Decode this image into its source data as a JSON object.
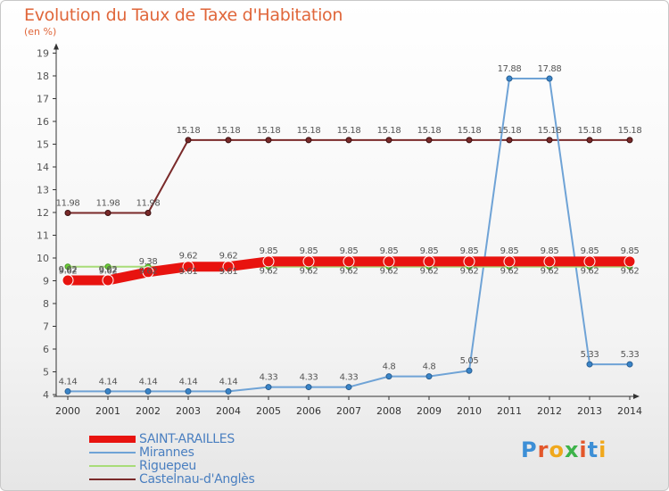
{
  "title": "Evolution du Taux de Taxe d'Habitation",
  "subtitle": "(en %)",
  "brand": "Proxiti",
  "brand_colors": [
    "#3d8fd6",
    "#e3572b",
    "#f0a81c",
    "#3db34a",
    "#e3572b",
    "#3d8fd6",
    "#f0a81c"
  ],
  "chart_data": {
    "type": "line",
    "title": "Evolution du Taux de Taxe d'Habitation",
    "ylabel": "(en %)",
    "ylim": [
      4,
      19
    ],
    "yticks": [
      4,
      5,
      6,
      7,
      8,
      9,
      10,
      11,
      12,
      13,
      14,
      15,
      16,
      17,
      18,
      19
    ],
    "grid": false,
    "legend_position": "bottom-left",
    "categories": [
      "2000",
      "2001",
      "2002",
      "2003",
      "2004",
      "2005",
      "2006",
      "2007",
      "2008",
      "2009",
      "2010",
      "2011",
      "2012",
      "2013",
      "2014"
    ],
    "series": [
      {
        "name": "Castelnau-d'Anglès",
        "color": "#7a2a2a",
        "values": [
          11.98,
          11.98,
          11.98,
          15.18,
          15.18,
          15.18,
          15.18,
          15.18,
          15.18,
          15.18,
          15.18,
          15.18,
          15.18,
          15.18,
          15.18
        ],
        "labels": [
          "11.98",
          "11.98",
          "11.98",
          "15.18",
          "15.18",
          "15.18",
          "15.18",
          "15.18",
          "15.18",
          "15.18",
          "15.18",
          "15.18",
          "15.18",
          "15.18",
          "15.18"
        ]
      },
      {
        "name": "Mirannes",
        "color": "#6fa3d6",
        "values": [
          4.14,
          4.14,
          4.14,
          4.14,
          4.14,
          4.33,
          4.33,
          4.33,
          4.8,
          4.8,
          5.05,
          17.88,
          17.88,
          5.33,
          5.33
        ],
        "labels": [
          "4.14",
          "4.14",
          "4.14",
          "4.14",
          "4.14",
          "4.33",
          "4.33",
          "4.33",
          "4.8",
          "4.8",
          "5.05",
          "17.88",
          "17.88",
          "5.33",
          "5.33"
        ]
      },
      {
        "name": "Riguepeu",
        "color": "#a8dc78",
        "values": [
          9.62,
          9.62,
          9.62,
          9.61,
          9.61,
          9.62,
          9.62,
          9.62,
          9.62,
          9.62,
          9.62,
          9.62,
          9.62,
          9.62,
          9.62
        ],
        "labels": [
          "9.62",
          "9.62",
          "9.62",
          "9.61",
          "9.61",
          "9.62",
          "9.62",
          "9.62",
          "9.62",
          "9.62",
          "9.62",
          "9.62",
          "9.62",
          "9.62",
          "9.62"
        ]
      },
      {
        "name": "SAINT-ARAILLES",
        "color": "#e8130f",
        "values": [
          9.02,
          9.02,
          9.38,
          9.62,
          9.62,
          9.85,
          9.85,
          9.85,
          9.85,
          9.85,
          9.85,
          9.85,
          9.85,
          9.85,
          9.85
        ],
        "labels": [
          "9.02",
          "9.02",
          "9.38",
          "9.62",
          "9.62",
          "9.85",
          "9.85",
          "9.85",
          "9.85",
          "9.85",
          "9.85",
          "9.85",
          "9.85",
          "9.85",
          "9.85"
        ]
      }
    ],
    "legend": [
      {
        "name": "SAINT-ARAILLES",
        "color": "#e8130f"
      },
      {
        "name": "Mirannes",
        "color": "#6fa3d6"
      },
      {
        "name": "Riguepeu",
        "color": "#a8dc78"
      },
      {
        "name": "Castelnau-d'Anglès",
        "color": "#7a2a2a"
      }
    ]
  }
}
